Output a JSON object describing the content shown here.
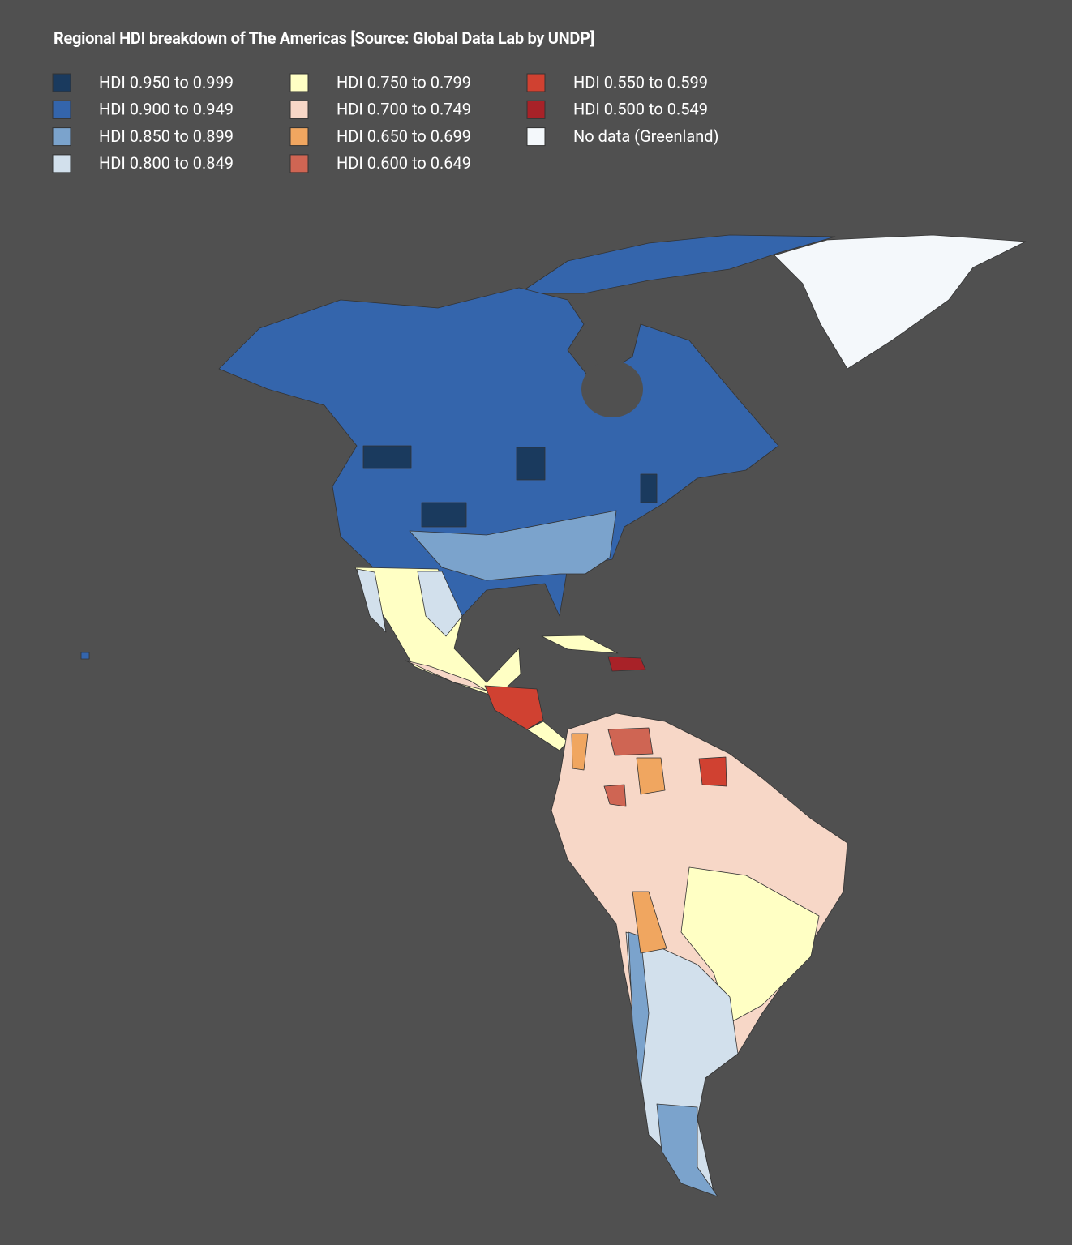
{
  "title": "Regional HDI breakdown of The Americas [Source: Global Data Lab by UNDP]",
  "legend": [
    {
      "label": "HDI 0.950 to 0.999",
      "color": "#1a3a5e"
    },
    {
      "label": "HDI 0.900 to 0.949",
      "color": "#3465ac"
    },
    {
      "label": "HDI 0.850 to 0.899",
      "color": "#7ba3cc"
    },
    {
      "label": "HDI 0.800 to 0.849",
      "color": "#d2e0ec"
    },
    {
      "label": "HDI 0.750 to 0.799",
      "color": "#ffffc4"
    },
    {
      "label": "HDI 0.700 to 0.749",
      "color": "#f7d7c7"
    },
    {
      "label": "HDI 0.650 to 0.699",
      "color": "#f0a660"
    },
    {
      "label": "HDI 0.600 to 0.649",
      "color": "#cf6553"
    },
    {
      "label": "HDI 0.550 to 0.599",
      "color": "#d04131"
    },
    {
      "label": "HDI 0.500 to 0.549",
      "color": "#a82228"
    },
    {
      "label": "No data (Greenland)",
      "color": "#f4f8fb"
    }
  ]
}
